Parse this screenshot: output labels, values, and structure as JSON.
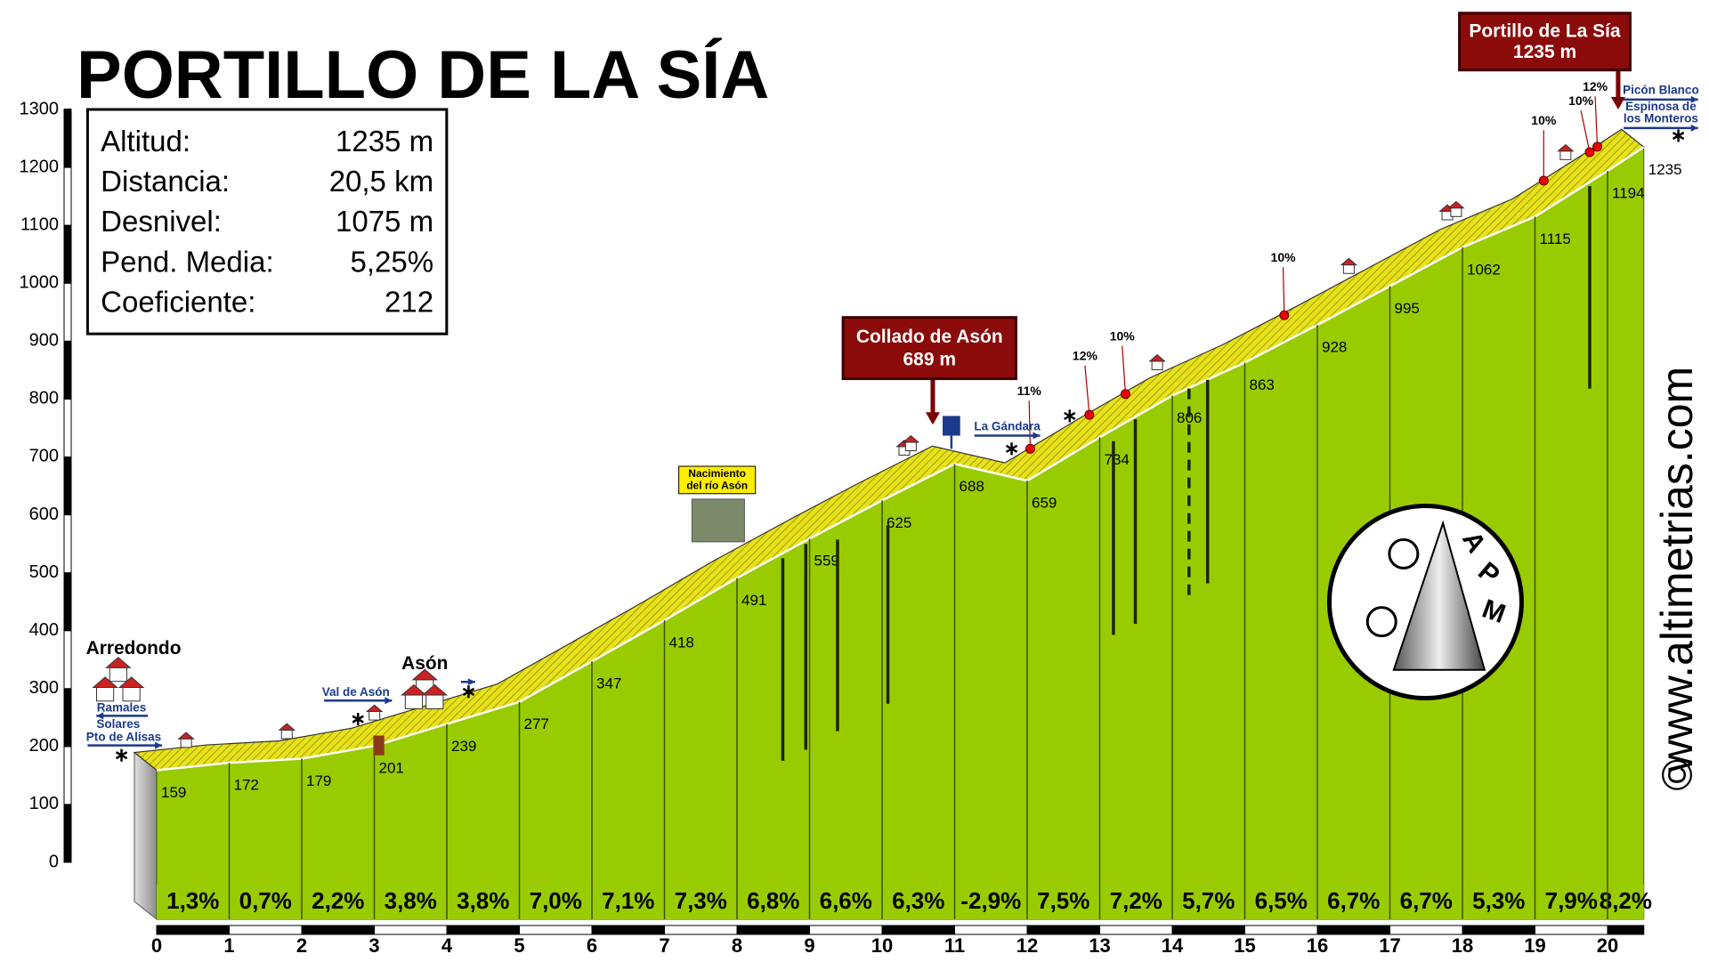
{
  "chart_data": {
    "type": "area",
    "title": "PORTILLO DE LA SÍA",
    "x": [
      0,
      1,
      2,
      3,
      4,
      5,
      6,
      7,
      8,
      9,
      10,
      11,
      12,
      13,
      14,
      15,
      16,
      17,
      18,
      19,
      20,
      20.5
    ],
    "values": [
      159,
      172,
      179,
      201,
      239,
      277,
      347,
      418,
      491,
      559,
      625,
      688,
      659,
      734,
      806,
      863,
      928,
      995,
      1062,
      1115,
      1194,
      1235
    ],
    "color": "#99cc00",
    "xlim": [
      0,
      20.5
    ],
    "xticks": [
      0,
      1,
      2,
      3,
      4,
      5,
      6,
      7,
      8,
      9,
      10,
      11,
      12,
      13,
      14,
      15,
      16,
      17,
      18,
      19,
      20
    ],
    "ylim": [
      0,
      1300
    ],
    "yticks": [
      0,
      100,
      200,
      300,
      400,
      500,
      600,
      700,
      800,
      900,
      1000,
      1100,
      1200,
      1300
    ],
    "gradients": {
      "values": [
        1.3,
        0.7,
        2.2,
        3.8,
        3.8,
        7.0,
        7.1,
        7.3,
        6.8,
        6.6,
        6.3,
        -2.9,
        7.5,
        7.2,
        5.7,
        6.5,
        6.7,
        6.7,
        5.3,
        7.9,
        8.2
      ],
      "value_labels": [
        "1,3%",
        "0,7%",
        "2,2%",
        "3,8%",
        "3,8%",
        "7,0%",
        "7,1%",
        "7,3%",
        "6,8%",
        "6,6%",
        "6,3%",
        "-2,9%",
        "7,5%",
        "7,2%",
        "5,7%",
        "6,5%",
        "6,7%",
        "6,7%",
        "5,3%",
        "7,9%",
        "8,2%"
      ]
    },
    "stats": [
      [
        "Altitud:",
        "1235 m"
      ],
      [
        "Distancia:",
        "20,5 km"
      ],
      [
        "Desnivel:",
        "1075 m"
      ],
      [
        "Pend. Media:",
        "5,25%"
      ],
      [
        "Coeficiente:",
        "212"
      ]
    ],
    "passes": [
      {
        "name": "Collado de Asón",
        "elevation": "689 m"
      },
      {
        "name": "Portillo de La Sía",
        "elevation": "1235 m"
      }
    ],
    "steep_points": [
      {
        "value": 11,
        "label": "11%"
      },
      {
        "value": 12,
        "label": "12%"
      },
      {
        "value": 10,
        "label": "10%"
      },
      {
        "value": 10,
        "label": "10%"
      },
      {
        "value": 10,
        "label": "10%"
      },
      {
        "value": 10,
        "label": "10%"
      },
      {
        "value": 12,
        "label": "12%"
      }
    ],
    "places": [
      "Arredondo",
      "Asón",
      "Ramales",
      "Solares",
      "Pto de Alisas",
      "Val de Asón",
      "La Gándara",
      "Picón Blanco",
      "Espinosa de",
      "los Monteros"
    ],
    "source_note": [
      "Nacimiento",
      "del río Asón"
    ],
    "logo": [
      "A",
      "P",
      "M"
    ],
    "website": "www.altimetrias.com",
    "copyright": "©"
  }
}
